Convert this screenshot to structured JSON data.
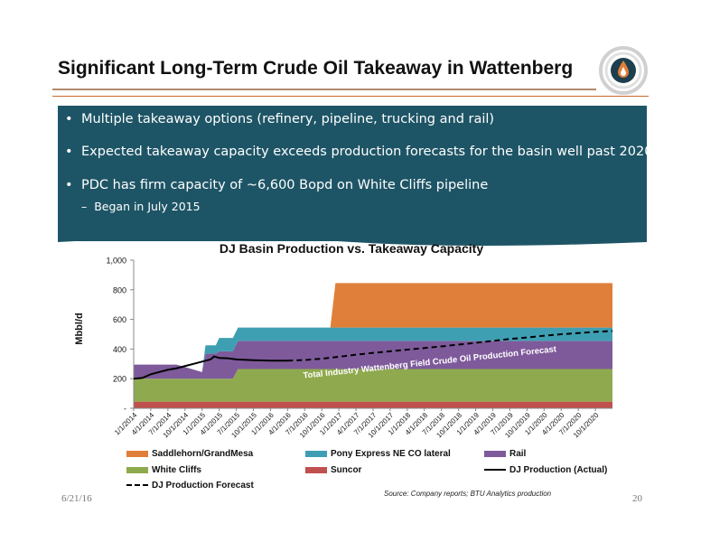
{
  "slide": {
    "title": "Significant Long-Term Crude Oil Takeaway in Wattenberg",
    "bullets": [
      "Multiple takeaway options  (refinery, pipeline, trucking and rail)",
      "Expected takeaway capacity exceeds production forecasts for the basin well past 2020",
      "PDC has firm capacity of ~6,600 Bopd on White Cliffs pipeline"
    ],
    "sub_bullet": "Began in July 2015",
    "bullet_marker": "•",
    "sub_marker": "–",
    "date": "6/21/16",
    "page": "20",
    "source": "Source: Company reports; BTU Analytics production"
  },
  "colors": {
    "accent": "#c86a2b",
    "panel": "#1e5566",
    "saddlehorn": "#e07f3a",
    "pony": "#3e9fb3",
    "rail": "#7e5a9b",
    "white_cliffs": "#8faa4e",
    "suncor": "#c0504d"
  },
  "chart_data": {
    "type": "area",
    "title": "DJ Basin Production vs. Takeaway Capacity",
    "ylabel": "Mbbl/d",
    "xlabel": "",
    "ylim": [
      0,
      1000
    ],
    "yticks": [
      0,
      200,
      400,
      600,
      800,
      1000
    ],
    "ytick_labels": [
      "-",
      "200",
      "400",
      "600",
      "800",
      "1,000"
    ],
    "x_labels": [
      "1/1/2014",
      "4/1/2014",
      "7/1/2014",
      "10/1/2014",
      "1/1/2015",
      "4/1/2015",
      "7/1/2015",
      "10/1/2015",
      "1/1/2016",
      "4/1/2016",
      "7/1/2016",
      "10/1/2016",
      "1/1/2017",
      "4/1/2017",
      "7/1/2017",
      "10/1/2017",
      "1/1/2018",
      "4/1/2018",
      "7/1/2018",
      "10/1/2018",
      "1/1/2019",
      "4/1/2019",
      "7/1/2019",
      "10/1/2019",
      "1/1/2020",
      "4/1/2020",
      "7/1/2020",
      "10/1/2020"
    ],
    "annotation": "Total Industry Wattenberg Field Crude Oil Production Forecast",
    "legend_placement": "bottom",
    "series": [
      {
        "name": "Suncor",
        "color": "#c0504d",
        "points": [
          [
            0,
            45
          ],
          [
            28,
            45
          ]
        ]
      },
      {
        "name": "White Cliffs",
        "color": "#8faa4e",
        "points": [
          [
            0,
            155
          ],
          [
            5.8,
            155
          ],
          [
            6.1,
            220
          ],
          [
            28,
            220
          ]
        ]
      },
      {
        "name": "Rail",
        "color": "#7e5a9b",
        "points": [
          [
            0,
            95
          ],
          [
            2.5,
            95
          ],
          [
            2.5,
            45
          ],
          [
            4,
            45
          ],
          [
            4,
            170
          ],
          [
            4.8,
            170
          ],
          [
            5,
            185
          ],
          [
            5.8,
            185
          ],
          [
            6.1,
            190
          ],
          [
            28,
            190
          ]
        ]
      },
      {
        "name": "Pony Express NE CO lateral",
        "color": "#3e9fb3",
        "points": [
          [
            0,
            0
          ],
          [
            4,
            0
          ],
          [
            4.2,
            55
          ],
          [
            4.8,
            55
          ],
          [
            5,
            90
          ],
          [
            28,
            90
          ]
        ]
      },
      {
        "name": "Saddlehorn/GrandMesa",
        "color": "#e07f3a",
        "points": [
          [
            0,
            0
          ],
          [
            11.5,
            0
          ],
          [
            11.8,
            300
          ],
          [
            28,
            300
          ]
        ]
      }
    ],
    "production_actual": {
      "name": "DJ Production (Actual)",
      "points": [
        [
          0,
          200
        ],
        [
          0.5,
          205
        ],
        [
          1,
          230
        ],
        [
          1.5,
          245
        ],
        [
          2,
          260
        ],
        [
          2.5,
          270
        ],
        [
          3,
          285
        ],
        [
          3.5,
          300
        ],
        [
          4,
          315
        ],
        [
          4.5,
          330
        ],
        [
          4.7,
          350
        ],
        [
          5,
          340
        ],
        [
          5.5,
          338
        ],
        [
          6,
          330
        ],
        [
          7,
          325
        ],
        [
          8,
          322
        ],
        [
          9,
          322
        ]
      ]
    },
    "production_forecast": {
      "name": "DJ Production Forecast",
      "points": [
        [
          9,
          322
        ],
        [
          10,
          326
        ],
        [
          11,
          335
        ],
        [
          12,
          348
        ],
        [
          13,
          362
        ],
        [
          14,
          374
        ],
        [
          15,
          385
        ],
        [
          16,
          396
        ],
        [
          17,
          407
        ],
        [
          18,
          418
        ],
        [
          19,
          430
        ],
        [
          20,
          442
        ],
        [
          21,
          455
        ],
        [
          22,
          468
        ],
        [
          23,
          478
        ],
        [
          24,
          490
        ],
        [
          25,
          500
        ],
        [
          26,
          508
        ],
        [
          27,
          516
        ],
        [
          28,
          522
        ]
      ]
    },
    "legend": [
      {
        "label": "Saddlehorn/GrandMesa",
        "kind": "box",
        "color": "#e07f3a"
      },
      {
        "label": "Pony Express NE CO lateral",
        "kind": "box",
        "color": "#3e9fb3"
      },
      {
        "label": "Rail",
        "kind": "box",
        "color": "#7e5a9b"
      },
      {
        "label": "White Cliffs",
        "kind": "box",
        "color": "#8faa4e"
      },
      {
        "label": "Suncor",
        "kind": "box",
        "color": "#c0504d"
      },
      {
        "label": "DJ Production (Actual)",
        "kind": "line",
        "color": "#000000"
      },
      {
        "label": "DJ Production Forecast",
        "kind": "dash",
        "color": "#000000"
      }
    ]
  }
}
